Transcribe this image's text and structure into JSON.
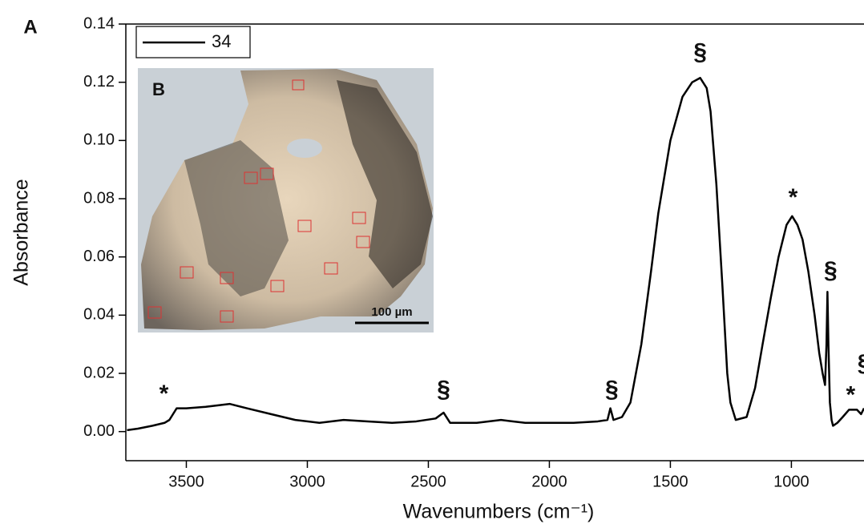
{
  "panel_label": "A",
  "chart_data": {
    "type": "line",
    "x_label": "Wavenumbers (cm⁻¹)",
    "y_label": "Absorbance",
    "xlim": [
      3750,
      700
    ],
    "ylim": [
      -0.01,
      0.14
    ],
    "xticks": [
      3500,
      3000,
      2500,
      2000,
      1500,
      1000
    ],
    "yticks": [
      {
        "value": 0,
        "label": "0.00"
      },
      {
        "value": 0.02,
        "label": "0.02"
      },
      {
        "value": 0.04,
        "label": "0.04"
      },
      {
        "value": 0.06,
        "label": "0.06"
      },
      {
        "value": 0.08,
        "label": "0.08"
      },
      {
        "value": 0.1,
        "label": "0.10"
      },
      {
        "value": 0.12,
        "label": "0.12"
      },
      {
        "value": 0.14,
        "label": "0.14"
      }
    ],
    "x": [
      3745,
      3700,
      3640,
      3590,
      3570,
      3540,
      3500,
      3420,
      3320,
      3250,
      3150,
      3050,
      2950,
      2850,
      2750,
      2650,
      2550,
      2470,
      2437,
      2410,
      2300,
      2200,
      2150,
      2100,
      2000,
      1900,
      1800,
      1760,
      1748,
      1735,
      1700,
      1665,
      1620,
      1580,
      1550,
      1500,
      1450,
      1410,
      1377,
      1350,
      1334,
      1310,
      1285,
      1265,
      1252,
      1230,
      1185,
      1150,
      1119,
      1085,
      1053,
      1020,
      997,
      975,
      954,
      930,
      904,
      885,
      871,
      861,
      855,
      851,
      847,
      841,
      834,
      828,
      810,
      788,
      762,
      745,
      729,
      712,
      700
    ],
    "series": [
      {
        "name": "34",
        "color": "#000000",
        "values": [
          0.0005,
          0.001,
          0.002,
          0.003,
          0.004,
          0.008,
          0.008,
          0.0085,
          0.0095,
          0.008,
          0.006,
          0.004,
          0.003,
          0.004,
          0.0035,
          0.003,
          0.0035,
          0.0045,
          0.0065,
          0.003,
          0.003,
          0.004,
          0.0035,
          0.003,
          0.003,
          0.003,
          0.0035,
          0.004,
          0.008,
          0.004,
          0.005,
          0.01,
          0.03,
          0.055,
          0.075,
          0.1,
          0.115,
          0.12,
          0.1215,
          0.118,
          0.11,
          0.085,
          0.05,
          0.02,
          0.01,
          0.004,
          0.005,
          0.015,
          0.03,
          0.046,
          0.06,
          0.071,
          0.074,
          0.071,
          0.066,
          0.055,
          0.04,
          0.027,
          0.02,
          0.016,
          0.03,
          0.048,
          0.03,
          0.01,
          0.004,
          0.002,
          0.003,
          0.005,
          0.0075,
          0.0075,
          0.0075,
          0.006,
          0.008
        ]
      }
    ],
    "annotations": [
      {
        "text": "*",
        "x": 3593,
        "y": 0.0126
      },
      {
        "text": "§",
        "x": 2437,
        "y": 0.014
      },
      {
        "text": "§",
        "x": 1742,
        "y": 0.014
      },
      {
        "text": "§",
        "x": 1377,
        "y": 0.13
      },
      {
        "text": "*",
        "x": 993,
        "y": 0.08
      },
      {
        "text": "§",
        "x": 838,
        "y": 0.055
      },
      {
        "text": "*",
        "x": 755,
        "y": 0.0122
      },
      {
        "text": "§",
        "x": 700,
        "y": 0.023
      }
    ],
    "legend": "top-left"
  },
  "inset": {
    "label": "B",
    "scale_bar": "100 µm"
  }
}
